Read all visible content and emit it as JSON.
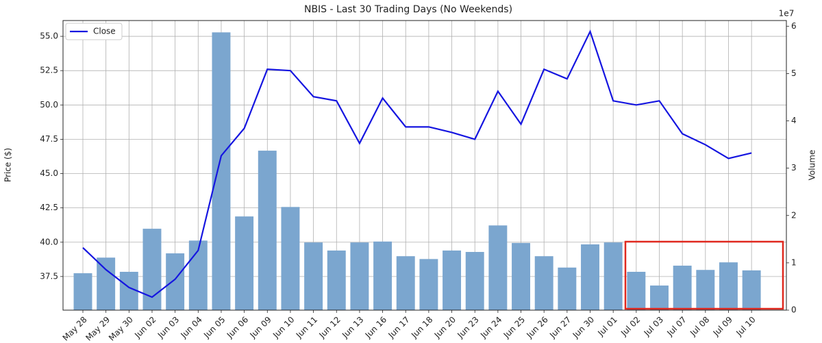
{
  "chart_data": {
    "type": "bar_line",
    "title": "NBIS - Last 30 Trading Days (No Weekends)",
    "y_label": "Price ($)",
    "y2_label": "Volume",
    "y2_offset_label": "1e7",
    "categories": [
      "May 28",
      "May 29",
      "May 30",
      "Jun 02",
      "Jun 03",
      "Jun 04",
      "Jun 05",
      "Jun 06",
      "Jun 09",
      "Jun 10",
      "Jun 11",
      "Jun 12",
      "Jun 13",
      "Jun 16",
      "Jun 17",
      "Jun 18",
      "Jun 20",
      "Jun 23",
      "Jun 24",
      "Jun 25",
      "Jun 26",
      "Jun 27",
      "Jun 30",
      "Jul 01",
      "Jul 02",
      "Jul 03",
      "Jul 07",
      "Jul 08",
      "Jul 09",
      "Jul 10"
    ],
    "series": [
      {
        "name": "Close",
        "type": "line",
        "color": "#1515e0",
        "axis": "y",
        "values": [
          39.6,
          38.0,
          36.7,
          36.0,
          37.3,
          39.4,
          46.3,
          48.3,
          52.6,
          52.5,
          50.6,
          50.3,
          47.2,
          50.5,
          48.4,
          48.4,
          48.0,
          47.5,
          51.0,
          48.6,
          52.6,
          51.9,
          55.35,
          50.3,
          50.0,
          50.3,
          47.9,
          47.1,
          46.1,
          46.5
        ]
      },
      {
        "type": "bar",
        "color": "#7ba6cf",
        "axis": "y2",
        "values": [
          0.78,
          1.11,
          0.81,
          1.72,
          1.2,
          1.47,
          5.87,
          1.98,
          3.37,
          2.18,
          1.43,
          1.26,
          1.43,
          1.45,
          1.14,
          1.08,
          1.26,
          1.23,
          1.79,
          1.42,
          1.14,
          0.9,
          1.39,
          1.43,
          0.81,
          0.52,
          0.94,
          0.85,
          1.01,
          0.84
        ]
      }
    ],
    "ylim": [
      35.05,
      56.15
    ],
    "yticks": [
      37.5,
      {
        "value": 40,
        "label": "40.0"
      },
      42.5,
      {
        "value": 45,
        "label": "45.0"
      },
      47.5,
      {
        "value": 50,
        "label": "50.0"
      },
      52.5,
      {
        "value": 55,
        "label": "55.0"
      }
    ],
    "y2lim": [
      0,
      6.12
    ],
    "y2ticks": [
      0,
      1,
      2,
      3,
      4,
      5,
      6
    ],
    "grid": true,
    "legend": "upper left"
  }
}
